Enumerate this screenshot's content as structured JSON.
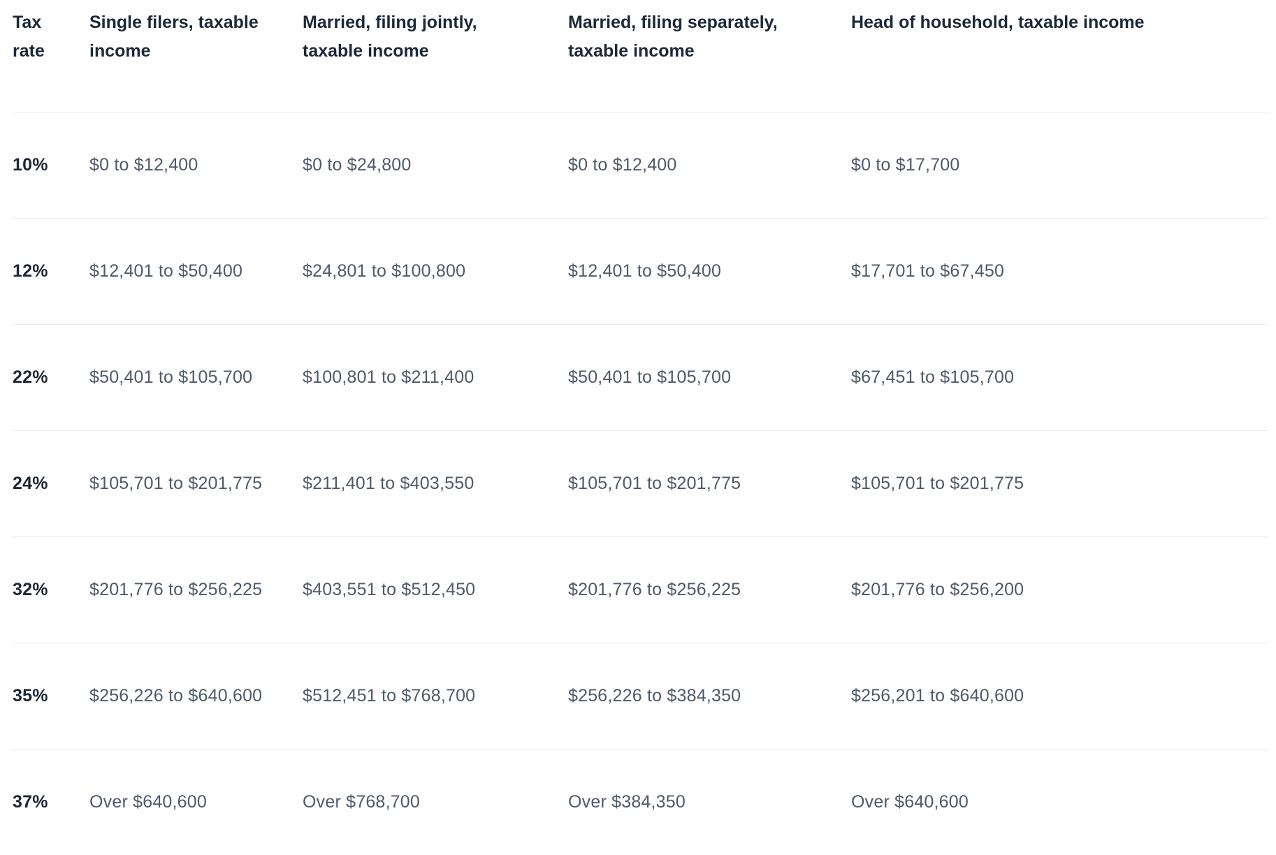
{
  "colors": {
    "background": "#ffffff",
    "header_text": "#1b2837",
    "rate_text": "#1b2837",
    "body_text": "#4d5a6b",
    "divider": "#e9ebee"
  },
  "table": {
    "columns": [
      {
        "label": "Tax rate"
      },
      {
        "label": "Single filers, taxable income"
      },
      {
        "label": "Married, filing jointly, taxable income"
      },
      {
        "label": "Married, filing separately, taxable income"
      },
      {
        "label": "Head of household, taxable income"
      }
    ],
    "rows": [
      {
        "rate": "10%",
        "single": "$0 to $12,400",
        "married_jointly": "$0 to $24,800",
        "married_separately": "$0 to $12,400",
        "head_of_household": "$0 to $17,700"
      },
      {
        "rate": "12%",
        "single": "$12,401 to $50,400",
        "married_jointly": "$24,801 to $100,800",
        "married_separately": "$12,401 to $50,400",
        "head_of_household": "$17,701 to $67,450"
      },
      {
        "rate": "22%",
        "single": "$50,401 to $105,700",
        "married_jointly": "$100,801 to $211,400",
        "married_separately": "$50,401 to $105,700",
        "head_of_household": "$67,451 to $105,700"
      },
      {
        "rate": "24%",
        "single": "$105,701 to $201,775",
        "married_jointly": "$211,401 to $403,550",
        "married_separately": "$105,701 to $201,775",
        "head_of_household": "$105,701 to $201,775"
      },
      {
        "rate": "32%",
        "single": "$201,776 to $256,225",
        "married_jointly": "$403,551 to $512,450",
        "married_separately": "$201,776 to $256,225",
        "head_of_household": "$201,776 to $256,200"
      },
      {
        "rate": "35%",
        "single": "$256,226 to $640,600",
        "married_jointly": "$512,451 to $768,700",
        "married_separately": "$256,226 to $384,350",
        "head_of_household": "$256,201 to $640,600"
      },
      {
        "rate": "37%",
        "single": "Over $640,600",
        "married_jointly": "Over $768,700",
        "married_separately": "Over $384,350",
        "head_of_household": "Over $640,600"
      }
    ]
  }
}
